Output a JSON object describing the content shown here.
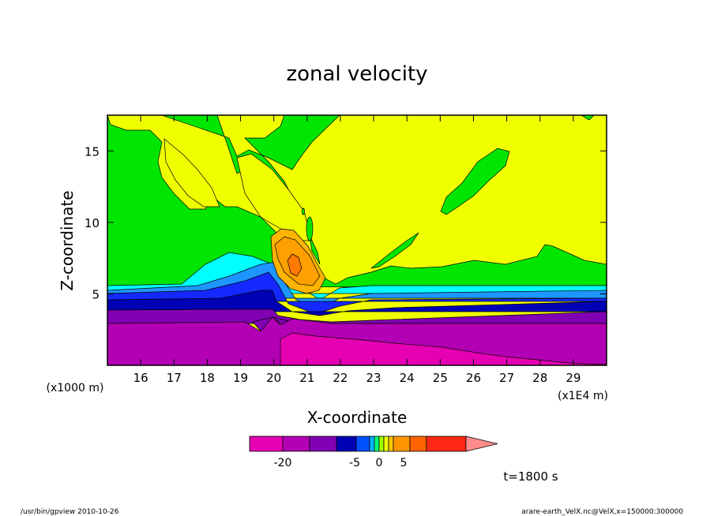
{
  "chart_data": {
    "type": "heatmap",
    "title": "zonal velocity",
    "xlabel": "X-coordinate",
    "ylabel": "Z-coordinate",
    "x_unit": "(x1E4 m)",
    "y_unit": "(x1000 m)",
    "xlim": [
      15.0,
      30.0
    ],
    "ylim": [
      0.0,
      17.5
    ],
    "x_ticks": [
      "16",
      "17",
      "18",
      "19",
      "20",
      "21",
      "22",
      "23",
      "24",
      "25",
      "26",
      "27",
      "28",
      "29"
    ],
    "y_ticks": [
      "5",
      "10",
      "15"
    ],
    "time_label": "t=1800 s",
    "colorbar": {
      "colors": [
        "#e600b4",
        "#b400b4",
        "#8200b4",
        "#0000b4",
        "#0050ff",
        "#00b4ff",
        "#00ff78",
        "#a0ff00",
        "#f0ff00",
        "#ffc800",
        "#ff9600",
        "#ff6400",
        "#ff2814",
        "#ff8c8c"
      ],
      "tick_labels": [
        "-20",
        "-5",
        "0",
        "5"
      ],
      "tick_values": [
        -20,
        -5,
        0,
        5
      ]
    },
    "fill_colors": {
      "level_m25": "#e600b4",
      "level_m20": "#b400b4",
      "level_m15": "#8200b4",
      "level_m10": "#0000b4",
      "level_m5": "#1428ff",
      "level_m2": "#1e96ff",
      "level_m1": "#00ffff",
      "level_0": "#00e600",
      "level_1": "#f0ff00",
      "level_3": "#ffa000",
      "level_5": "#ff7800"
    }
  },
  "footer": {
    "left": "/usr/bin/gpview  2010-10-26",
    "right": "arare-earth_VelX.nc@VelX,x=150000:300000"
  }
}
